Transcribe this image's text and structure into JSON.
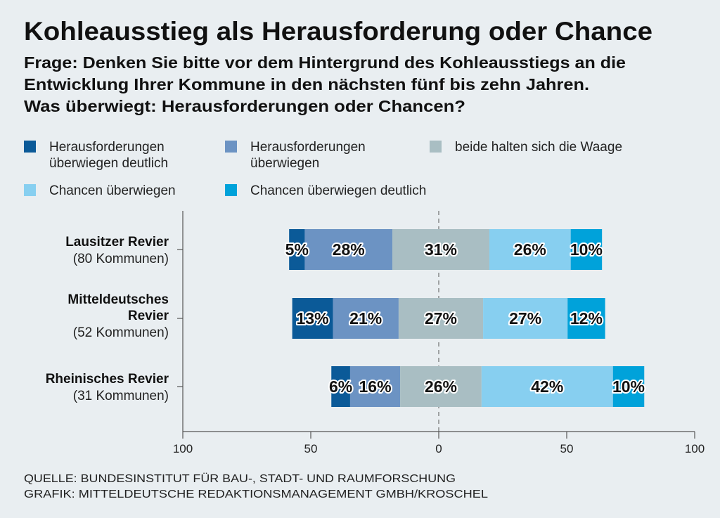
{
  "chart_data": {
    "type": "bar",
    "orientation": "horizontal",
    "stacked": "diverging",
    "title": "Kohleausstieg als Herausforderung oder Chance",
    "subtitle_lines": [
      "Frage: Denken Sie bitte vor dem Hintergrund des Kohleausstiegs an die",
      "Entwicklung Ihrer Kommune in den nächsten fünf bis zehn Jahren.",
      "Was überwiegt: Herausforderungen oder Chancen?"
    ],
    "categories": [
      {
        "name_lines": [
          "Lausitzer Revier"
        ],
        "count": "(80 Kommunen)"
      },
      {
        "name_lines": [
          "Mitteldeutsches",
          "Revier"
        ],
        "count": "(52 Kommunen)"
      },
      {
        "name_lines": [
          "Rheinisches Revier"
        ],
        "count": "(31 Kommunen)"
      }
    ],
    "series": [
      {
        "name": "Herausforderungen überwiegen deutlich",
        "legend_lines": [
          "Herausforderungen",
          "überwiegen deutlich"
        ],
        "color": "#0b5a98",
        "values": [
          5,
          13,
          6
        ]
      },
      {
        "name": "Herausforderungen überwiegen",
        "legend_lines": [
          "Herausforderungen",
          "überwiegen"
        ],
        "color": "#6c93c3",
        "values": [
          28,
          21,
          16
        ]
      },
      {
        "name": "beide halten sich die Waage",
        "legend_lines": [
          "beide halten sich die Waage"
        ],
        "color": "#a9bec3",
        "values": [
          31,
          27,
          26
        ]
      },
      {
        "name": "Chancen überwiegen",
        "legend_lines": [
          "Chancen überwiegen"
        ],
        "color": "#87cff0",
        "values": [
          26,
          27,
          42
        ]
      },
      {
        "name": "Chancen überwiegen deutlich",
        "legend_lines": [
          "Chancen überwiegen deutlich"
        ],
        "color": "#00a2da",
        "values": [
          10,
          12,
          10
        ]
      }
    ],
    "value_suffix": "%",
    "xticks": [
      100,
      50,
      0,
      50,
      100
    ],
    "xlim": [
      -100,
      100
    ],
    "zero_line": "dashed",
    "legend_placement": "top",
    "grid": false
  },
  "footer": {
    "source": "QUELLE: BUNDESINSTITUT FÜR BAU-, STADT- UND RAUMFORSCHUNG",
    "graphic": "GRAFIK: MITTELDEUTSCHE REDAKTIONSMANAGEMENT GMBH/KROSCHEL"
  }
}
